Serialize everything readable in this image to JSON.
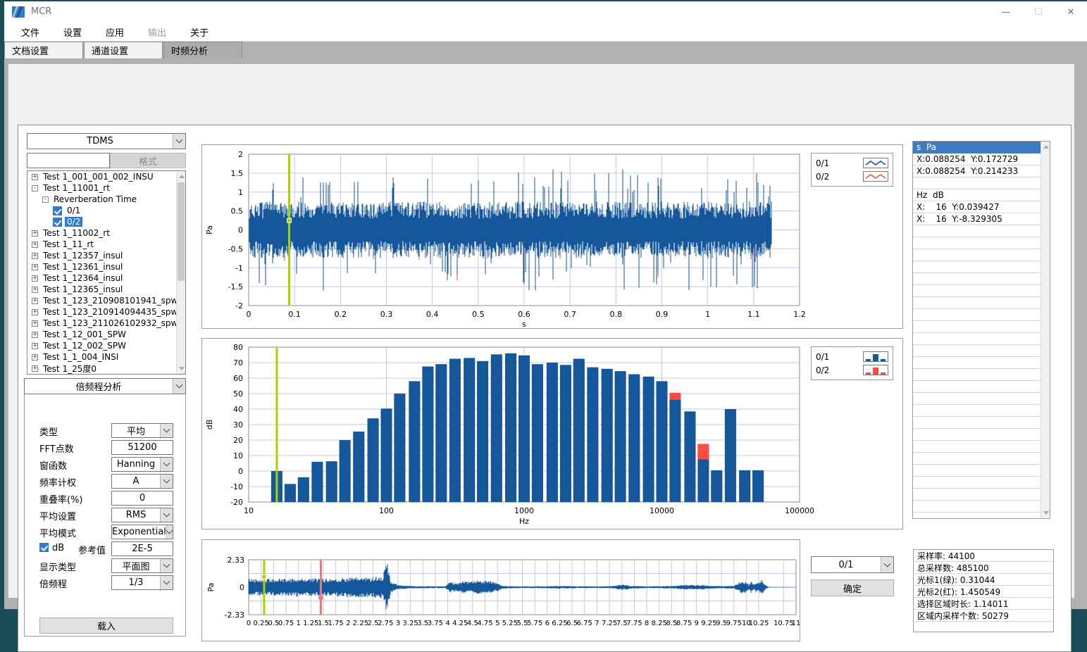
{
  "window": {
    "title": "MCR",
    "controls": {
      "minimize": "—",
      "maximize": "☐",
      "close": "✕"
    }
  },
  "menu": {
    "items": [
      {
        "label": "文件",
        "enabled": true
      },
      {
        "label": "设置",
        "enabled": true
      },
      {
        "label": "应用",
        "enabled": true
      },
      {
        "label": "输出",
        "enabled": false
      },
      {
        "label": "关于",
        "enabled": true
      }
    ]
  },
  "tabs": [
    {
      "label": "文档设置",
      "active": false
    },
    {
      "label": "通道设置",
      "active": false
    },
    {
      "label": "时频分析",
      "active": true
    }
  ],
  "left_panel": {
    "format_combo": "TDMS",
    "format_input": "",
    "format_button": "格式",
    "tree": [
      {
        "depth": 0,
        "expander": "+",
        "label": "Test 1_001_001_002_INSU"
      },
      {
        "depth": 0,
        "expander": "-",
        "label": "Test 1_11001_rt"
      },
      {
        "depth": 1,
        "expander": "-",
        "label": "Reverberation Time"
      },
      {
        "depth": 2,
        "checkbox": true,
        "label": "0/1"
      },
      {
        "depth": 2,
        "checkbox": true,
        "label": "0/2",
        "selected": true
      },
      {
        "depth": 0,
        "expander": "+",
        "label": "Test 1_11002_rt"
      },
      {
        "depth": 0,
        "expander": "+",
        "label": "Test 1_11_rt"
      },
      {
        "depth": 0,
        "expander": "+",
        "label": "Test 1_12357_insul"
      },
      {
        "depth": 0,
        "expander": "+",
        "label": "Test 1_12361_insul"
      },
      {
        "depth": 0,
        "expander": "+",
        "label": "Test 1_12364_insul"
      },
      {
        "depth": 0,
        "expander": "+",
        "label": "Test 1_12365_insul"
      },
      {
        "depth": 0,
        "expander": "+",
        "label": "Test 1_123_210908101941_spw"
      },
      {
        "depth": 0,
        "expander": "+",
        "label": "Test 1_123_210914094435_spw"
      },
      {
        "depth": 0,
        "expander": "+",
        "label": "Test 1_123_211026102932_spw"
      },
      {
        "depth": 0,
        "expander": "+",
        "label": "Test 1_12_001_SPW"
      },
      {
        "depth": 0,
        "expander": "+",
        "label": "Test 1_12_002_SPW"
      },
      {
        "depth": 0,
        "expander": "+",
        "label": "Test 1_1_004_INSI"
      },
      {
        "depth": 0,
        "expander": "+",
        "label": "Test 1_25度0"
      }
    ],
    "analysis_combo": "倍频程分析",
    "fields": [
      {
        "name": "type",
        "label": "类型",
        "value": "平均",
        "kind": "select"
      },
      {
        "name": "fft-points",
        "label": "FFT点数",
        "value": "51200",
        "kind": "input"
      },
      {
        "name": "window-function",
        "label": "窗函数",
        "value": "Hanning",
        "kind": "select"
      },
      {
        "name": "frequency-weighting",
        "label": "频率计权",
        "value": "A",
        "kind": "select"
      },
      {
        "name": "overlap",
        "label": "重叠率(%)",
        "value": "0",
        "kind": "input"
      },
      {
        "name": "average-setting",
        "label": "平均设置",
        "value": "RMS",
        "kind": "select"
      },
      {
        "name": "average-mode",
        "label": "平均模式",
        "value": "Exponential",
        "kind": "select"
      },
      {
        "name": "db-reference",
        "label": "dB",
        "label2": "参考值",
        "value": "2E-5",
        "kind": "checkbox-input",
        "checked": true
      },
      {
        "name": "display-type",
        "label": "显示类型",
        "value": "平面图",
        "kind": "select"
      },
      {
        "name": "octave",
        "label": "倍频程",
        "value": "1/3",
        "kind": "select"
      }
    ],
    "load_button": "载入"
  },
  "legends": {
    "chart1": [
      {
        "name": "0/1",
        "color": "#15579B",
        "icon": "line"
      },
      {
        "name": "0/2",
        "color": "#FB4B42",
        "icon": "line"
      }
    ],
    "chart2": [
      {
        "name": "0/1",
        "color": "#15579B",
        "icon": "bar"
      },
      {
        "name": "0/2",
        "color": "#FB4B42",
        "icon": "bar"
      }
    ]
  },
  "readout": {
    "header": "s  Pa",
    "rows": [
      "X:0.088254  Y:0.172729",
      "X:0.088254  Y:0.214233",
      "",
      "Hz  dB",
      "X:    16  Y:0.039427",
      "X:    16  Y:-8.329305"
    ],
    "empty_rows": 25
  },
  "bottom_controls": {
    "channel_select": "0/1",
    "confirm_button": "确定"
  },
  "info_panel": {
    "rows": [
      {
        "label": "采样率",
        "value": "44100"
      },
      {
        "label": "总采样数",
        "value": "485100"
      },
      {
        "label": "光标1(绿)",
        "value": "0.31044"
      },
      {
        "label": "光标2(红)",
        "value": "1.450549"
      },
      {
        "label": "选择区域时长",
        "value": "1.14011"
      },
      {
        "label": "区域内采样个数",
        "value": "50279"
      }
    ]
  },
  "colors": {
    "blue": "#15579B",
    "red": "#FB4B42",
    "green": "#A6D400",
    "pink": "#E87C7C",
    "grid": "#C8C8E6",
    "axis": "#8A8A8A"
  },
  "chart_data": [
    {
      "id": "time-waveform",
      "type": "line",
      "xlabel": "s",
      "ylabel": "Pa",
      "xlim": [
        0,
        1.2
      ],
      "ylim": [
        -2,
        2
      ],
      "xticks": [
        0,
        0.1,
        0.2,
        0.3,
        0.4,
        0.5,
        0.6,
        0.7,
        0.8,
        0.9,
        1,
        1.1,
        1.2
      ],
      "yticks": [
        2,
        1.5,
        1,
        0.5,
        0,
        -0.5,
        -1,
        -1.5,
        -2
      ],
      "grid": true,
      "legend_position": "right",
      "series": [
        {
          "name": "0/1",
          "color": "#15579B"
        },
        {
          "name": "0/2",
          "color": "#FB4B42"
        }
      ],
      "signal": {
        "duration": 1.14011,
        "base_amp": 0.75,
        "peak_amp": 1.6,
        "seed": 7
      },
      "cursors": [
        {
          "color": "#A6D400",
          "x": 0.088254,
          "handle_y": 0.25
        }
      ]
    },
    {
      "id": "octave-spectrum",
      "type": "bar",
      "xlabel": "Hz",
      "ylabel": "dB",
      "xscale": "log",
      "xlim": [
        10,
        100000
      ],
      "ylim": [
        -20,
        80
      ],
      "xticks": [
        10,
        100,
        1000,
        10000,
        100000
      ],
      "yticks": [
        80,
        70,
        60,
        50,
        40,
        30,
        20,
        10,
        0,
        -10,
        -20
      ],
      "grid": true,
      "legend_position": "right",
      "categories": [
        16,
        20,
        25,
        31.5,
        40,
        50,
        63,
        80,
        100,
        125,
        160,
        200,
        250,
        315,
        400,
        500,
        630,
        800,
        1000,
        1250,
        1600,
        2000,
        2500,
        3150,
        4000,
        5000,
        6300,
        8000,
        10000,
        12500,
        16000,
        20000,
        25000,
        31500,
        40000,
        50000
      ],
      "series": [
        {
          "name": "0/1",
          "color": "#15579B",
          "values": [
            0.04,
            -8.3,
            -4,
            6,
            6.3,
            20,
            25.5,
            34,
            40.3,
            50,
            58,
            67.5,
            69,
            72.5,
            73,
            71,
            75.3,
            76,
            74.7,
            69,
            70,
            68.5,
            72.5,
            67,
            66,
            64.5,
            62.5,
            61,
            58,
            46,
            38.5,
            7.5,
            0.5,
            40,
            0.5,
            0.5
          ]
        },
        {
          "name": "0/2",
          "color": "#FB4B42",
          "values": [
            -8.33,
            -10,
            -6,
            4,
            4.3,
            18,
            23.5,
            32,
            38.3,
            48,
            56,
            65.5,
            67,
            70.5,
            71,
            69,
            73.3,
            74,
            72.7,
            67,
            68,
            66.5,
            70.5,
            65,
            64,
            62.5,
            60.5,
            59,
            56,
            50.5,
            36.5,
            17.5,
            -1.5,
            38,
            -1.5,
            -1.5
          ]
        }
      ],
      "cursors": [
        {
          "color": "#A6D400",
          "x": 16
        }
      ]
    },
    {
      "id": "overview-waveform",
      "type": "line",
      "xlabel": "",
      "ylabel": "Pa",
      "xlim": [
        0,
        11
      ],
      "ylim": [
        -2.33,
        2.33
      ],
      "xticks": [
        0,
        0.25,
        0.5,
        0.75,
        1,
        1.25,
        1.5,
        1.75,
        2,
        2.25,
        2.5,
        2.75,
        3,
        3.25,
        3.5,
        3.75,
        4,
        4.25,
        4.5,
        4.75,
        5,
        5.25,
        5.5,
        5.75,
        6,
        6.25,
        6.5,
        6.75,
        7,
        7.25,
        7.5,
        7.75,
        8,
        8.25,
        8.5,
        8.75,
        9,
        9.25,
        9.5,
        9.75,
        10,
        10.25,
        10.75,
        11
      ],
      "yticks": [
        2.33,
        0,
        -2.33
      ],
      "grid": true,
      "series": [
        {
          "name": "0/1",
          "color": "#15579B"
        }
      ],
      "envelope": [
        [
          0,
          0.72
        ],
        [
          0.5,
          0.68
        ],
        [
          1.0,
          0.75
        ],
        [
          1.5,
          0.72
        ],
        [
          2.0,
          0.8
        ],
        [
          2.5,
          0.85
        ],
        [
          2.7,
          0.95
        ],
        [
          2.78,
          2.3
        ],
        [
          2.85,
          0.5
        ],
        [
          3.0,
          0.18
        ],
        [
          3.3,
          0.1
        ],
        [
          3.6,
          0.08
        ],
        [
          3.95,
          0.08
        ],
        [
          4.05,
          0.45
        ],
        [
          4.2,
          0.35
        ],
        [
          4.3,
          0.5
        ],
        [
          4.45,
          0.4
        ],
        [
          4.55,
          0.55
        ],
        [
          4.75,
          0.6
        ],
        [
          4.9,
          0.45
        ],
        [
          5.0,
          0.35
        ],
        [
          5.1,
          0.12
        ],
        [
          5.5,
          0.07
        ],
        [
          6.0,
          0.09
        ],
        [
          6.3,
          0.12
        ],
        [
          6.6,
          0.08
        ],
        [
          7.0,
          0.07
        ],
        [
          7.3,
          0.1
        ],
        [
          7.5,
          0.22
        ],
        [
          7.7,
          0.12
        ],
        [
          8.0,
          0.08
        ],
        [
          8.3,
          0.1
        ],
        [
          8.6,
          0.13
        ],
        [
          8.75,
          0.2
        ],
        [
          9.0,
          0.18
        ],
        [
          9.1,
          0.22
        ],
        [
          9.3,
          0.12
        ],
        [
          9.5,
          0.1
        ],
        [
          9.75,
          0.12
        ],
        [
          9.9,
          0.5
        ],
        [
          10.0,
          0.45
        ],
        [
          10.05,
          0.2
        ],
        [
          10.1,
          0.5
        ],
        [
          10.15,
          0.25
        ],
        [
          10.2,
          0.45
        ],
        [
          10.25,
          0.3
        ],
        [
          10.3,
          0.7
        ],
        [
          10.4,
          0.15
        ],
        [
          10.45,
          0.03
        ],
        [
          11,
          0.02
        ]
      ],
      "cursors": [
        {
          "color": "#A6D400",
          "x": 0.31044,
          "handle_y": 0.9,
          "handle": "square"
        },
        {
          "color": "#E87C7C",
          "x": 1.450549,
          "handle_y": -0.9,
          "handle": "dot"
        }
      ]
    }
  ]
}
